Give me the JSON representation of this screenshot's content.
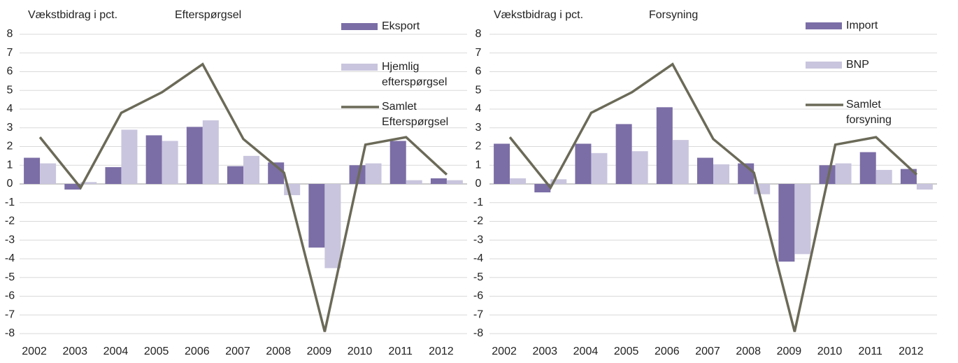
{
  "chart_data": [
    {
      "type": "bar",
      "title": "Efterspørgsel",
      "y_label": "Vækstbidrag i pct.",
      "categories": [
        "2002",
        "2003",
        "2004",
        "2005",
        "2006",
        "2007",
        "2008",
        "2009",
        "2010",
        "2011",
        "2012"
      ],
      "ylim": [
        -8,
        8
      ],
      "yticks": [
        -8,
        -7,
        -6,
        -5,
        -4,
        -3,
        -2,
        -1,
        0,
        1,
        2,
        3,
        4,
        5,
        6,
        7,
        8
      ],
      "grid": true,
      "series": [
        {
          "name": "Eksport",
          "color": "#7b6ea6",
          "type": "bar",
          "values": [
            1.4,
            -0.3,
            0.9,
            2.6,
            3.05,
            0.95,
            1.15,
            -3.4,
            1.0,
            2.3,
            0.3
          ]
        },
        {
          "name": "Hjemlig efterspørgsel",
          "color": "#c9c5de",
          "type": "bar",
          "values": [
            1.1,
            0.1,
            2.9,
            2.3,
            3.4,
            1.5,
            -0.6,
            -4.5,
            1.1,
            0.2,
            0.2
          ]
        },
        {
          "name": "Samlet Efterspørgsel",
          "color": "#6b6a58",
          "type": "line",
          "values": [
            2.5,
            -0.2,
            3.8,
            4.9,
            6.4,
            2.4,
            0.6,
            -7.9,
            2.1,
            2.5,
            0.5
          ]
        }
      ]
    },
    {
      "type": "bar",
      "title": "Forsyning",
      "y_label": "Vækstbidrag i pct.",
      "categories": [
        "2002",
        "2003",
        "2004",
        "2005",
        "2006",
        "2007",
        "2008",
        "2009",
        "2010",
        "2011",
        "2012"
      ],
      "ylim": [
        -8,
        8
      ],
      "yticks": [
        -8,
        -7,
        -6,
        -5,
        -4,
        -3,
        -2,
        -1,
        0,
        1,
        2,
        3,
        4,
        5,
        6,
        7,
        8
      ],
      "grid": true,
      "series": [
        {
          "name": "Import",
          "color": "#7b6ea6",
          "type": "bar",
          "values": [
            2.15,
            -0.45,
            2.15,
            3.2,
            4.1,
            1.4,
            1.1,
            -4.15,
            1.0,
            1.7,
            0.8
          ]
        },
        {
          "name": "BNP",
          "color": "#c9c5de",
          "type": "bar",
          "values": [
            0.3,
            0.25,
            1.65,
            1.75,
            2.35,
            1.05,
            -0.55,
            -3.75,
            1.1,
            0.75,
            -0.3
          ]
        },
        {
          "name": "Samlet forsyning",
          "color": "#6b6a58",
          "type": "line",
          "values": [
            2.5,
            -0.2,
            3.8,
            4.9,
            6.4,
            2.4,
            0.6,
            -7.9,
            2.1,
            2.5,
            0.5
          ]
        }
      ]
    }
  ]
}
